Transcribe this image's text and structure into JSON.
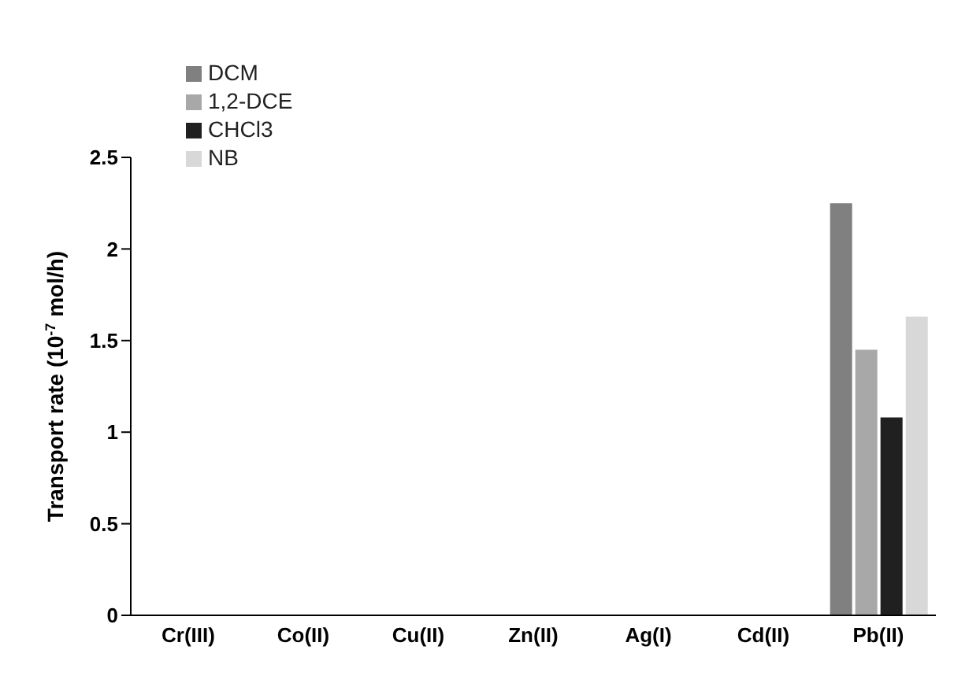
{
  "chart_data": {
    "type": "bar",
    "ylabel": "Transport rate (10$^{-7}$ mol/h)",
    "categories": [
      "Cr(III)",
      "Co(II)",
      "Cu(II)",
      "Zn(II)",
      "Ag(I)",
      "Cd(II)",
      "Pb(II)"
    ],
    "series": [
      {
        "name": "DCM",
        "color": "#808080",
        "values": [
          0,
          0,
          0,
          0,
          0,
          0,
          2.25
        ]
      },
      {
        "name": "1,2-DCE",
        "color": "#a8a8a8",
        "values": [
          0,
          0,
          0,
          0,
          0,
          0,
          1.45
        ]
      },
      {
        "name": "CHCl3",
        "color": "#202020",
        "values": [
          0,
          0,
          0,
          0,
          0,
          0,
          1.08
        ]
      },
      {
        "name": "NB",
        "color": "#d8d8d8",
        "values": [
          0,
          0,
          0,
          0,
          0,
          0,
          1.63
        ]
      }
    ],
    "ylim": [
      0,
      2.5
    ],
    "yticks": [
      0,
      0.5,
      1,
      1.5,
      2,
      2.5
    ],
    "grid": false,
    "legend": "top left"
  }
}
